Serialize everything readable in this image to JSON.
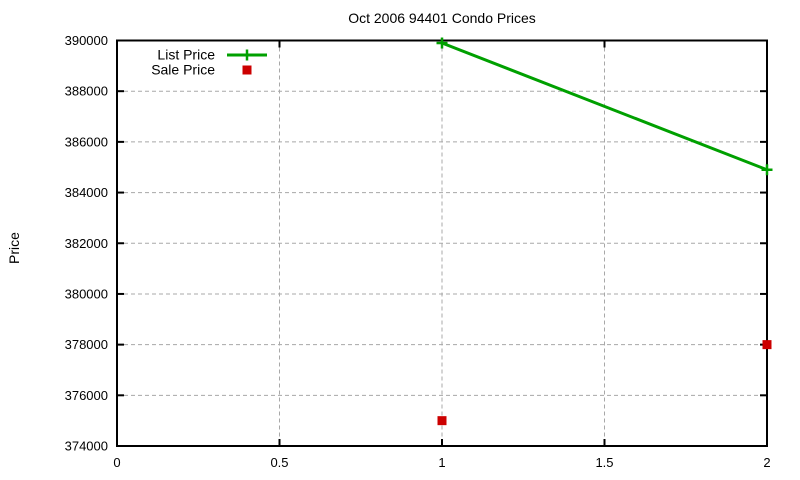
{
  "chart_data": {
    "type": "line",
    "title": "Oct 2006 94401 Condo Prices",
    "xlabel": "",
    "ylabel": "Price",
    "xlim": [
      0,
      2
    ],
    "ylim": [
      374000,
      390000
    ],
    "xticks": [
      0,
      0.5,
      1,
      1.5,
      2
    ],
    "yticks": [
      374000,
      376000,
      378000,
      380000,
      382000,
      384000,
      386000,
      388000,
      390000
    ],
    "grid": true,
    "legend_position": "top-left",
    "series": [
      {
        "name": "List Price",
        "type": "line",
        "marker": "plus",
        "color": "#00a000",
        "x": [
          1,
          2
        ],
        "y": [
          389900,
          384900
        ]
      },
      {
        "name": "Sale Price",
        "type": "scatter",
        "marker": "square",
        "color": "#cc0000",
        "x": [
          1,
          2
        ],
        "y": [
          375000,
          378000
        ]
      }
    ],
    "colors": {
      "grid": "#a8a8a8",
      "border": "#000000",
      "background": "#ffffff",
      "text": "#000000"
    }
  }
}
